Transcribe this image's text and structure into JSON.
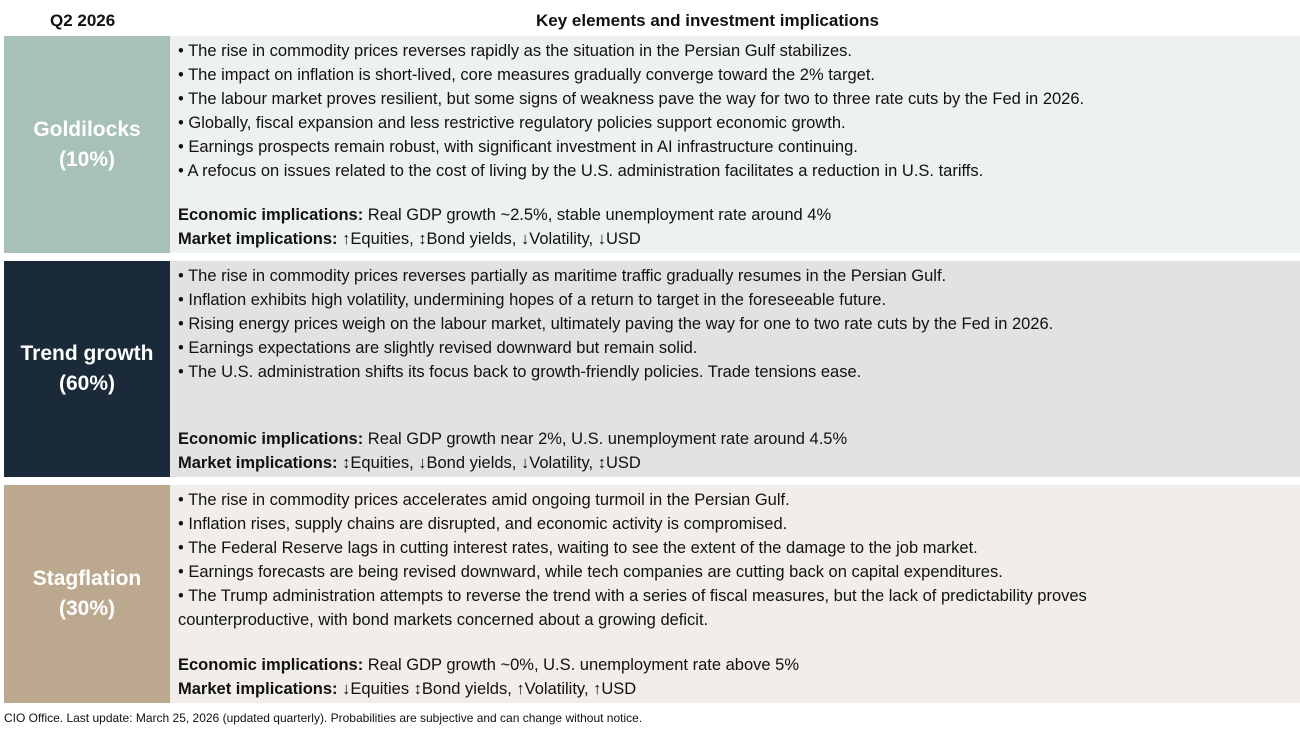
{
  "header": {
    "period": "Q2 2026",
    "title": "Key elements and investment implications"
  },
  "colors": {
    "goldilocks": "#a8c1b8",
    "goldilocks_bg": "#edf1ef",
    "trend": "#1b2a38",
    "trend_bg": "#e2e2e2",
    "stagflation": "#bba88f",
    "stagflation_bg": "#f1eee9"
  },
  "scenarios": [
    {
      "name": "Goldilocks",
      "prob": "(10%)",
      "bullets": [
        "• The rise in commodity prices reverses rapidly as the situation in the Persian Gulf stabilizes.",
        "• The impact on inflation is short-lived, core measures gradually converge toward the 2% target.",
        "• The labour market proves resilient, but some signs of weakness pave the way for two to three rate cuts by the Fed in 2026.",
        "• Globally, fiscal expansion and less restrictive regulatory policies support economic growth.",
        "• Earnings prospects remain robust, with significant investment in AI infrastructure continuing.",
        "• A refocus on issues related to the cost of living by the U.S. administration facilitates a reduction in U.S. tariffs."
      ],
      "econ_label": "Economic implications:",
      "econ": " Real GDP growth ~2.5%, stable unemployment rate around 4%",
      "market_label": "Market implications:",
      "market": " ↑Equities, ↕Bond yields, ↓Volatility, ↓USD"
    },
    {
      "name": "Trend growth",
      "prob": "(60%)",
      "bullets": [
        "• The rise in commodity prices reverses partially as maritime traffic gradually resumes in the Persian Gulf.",
        "• Inflation exhibits high volatility, undermining hopes of a return to target in the foreseeable future.",
        "• Rising energy prices weigh on the labour market, ultimately paving the way for one to two rate cuts by the Fed in 2026.",
        "• Earnings expectations are slightly revised downward but remain solid.",
        "• The U.S. administration shifts its focus back to growth-friendly policies. Trade tensions ease."
      ],
      "econ_label": "Economic implications:",
      "econ": " Real GDP growth near 2%, U.S. unemployment rate around 4.5%",
      "market_label": "Market implications:",
      "market": " ↕Equities, ↓Bond yields, ↓Volatility, ↕USD"
    },
    {
      "name": "Stagflation",
      "prob": "(30%)",
      "bullets": [
        "• The rise in commodity prices accelerates amid ongoing turmoil in the Persian Gulf.",
        "• Inflation rises, supply chains are disrupted, and economic activity is compromised.",
        "• The Federal Reserve lags in cutting interest rates, waiting to see the extent of the damage to the job market.",
        "• Earnings forecasts are being revised downward, while tech companies are cutting back on capital expenditures.",
        "• The Trump administration attempts to reverse the trend with a series of fiscal measures, but the lack of predictability proves\ncounterproductive, with bond markets concerned about a growing deficit."
      ],
      "econ_label": "Economic implications:",
      "econ": " Real GDP growth ~0%, U.S. unemployment rate above 5%",
      "market_label": "Market implications:",
      "market": " ↓Equities ↕Bond yields, ↑Volatility, ↑USD"
    }
  ],
  "footer": "CIO Office. Last update: March 25, 2026 (updated quarterly). Probabilities are subjective and can change without notice."
}
